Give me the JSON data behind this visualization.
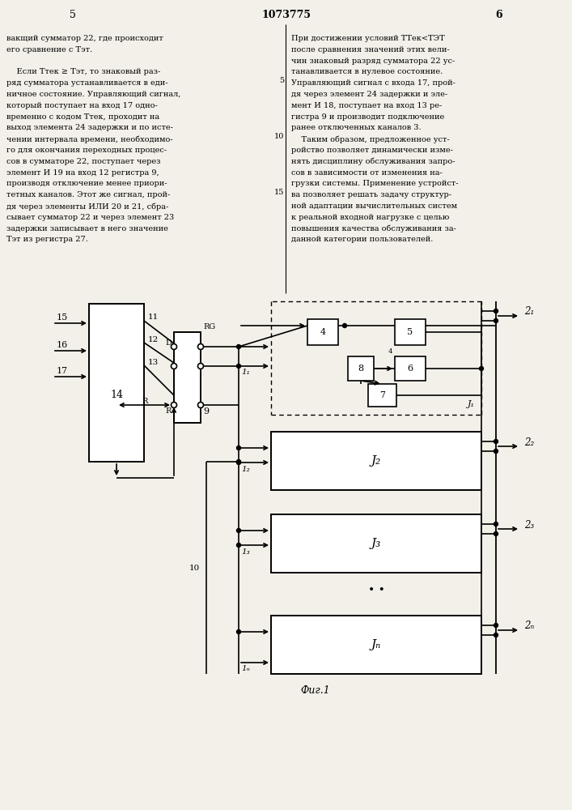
{
  "bg": "#f2f0e8",
  "lc": "#000000",
  "tc": "#000000",
  "header": "1073775",
  "fig_label": "Фиг.1",
  "left_text": [
    "вакщий сумматор 22, где происходит",
    "его сравнение с Tэт.",
    "",
    "    Если Tтек ≥ Tэт, то знаковый раз-",
    "ряд сумматора устанавливается в еди-",
    "ничное состояние. Управляющий сигнал,",
    "который поступает на вход 17 одно-",
    "временно с кодом Tтек, проходит на",
    "выход элемента 24 задержки и по исте-",
    "чении интервала времени, необходимо-",
    "го для окончания переходных процес-",
    "сов в сумматоре 22, поступает через",
    "элемент И 19 на вход 12 регистра 9,",
    "производя отключение менее приори-",
    "тетных каналов. Этот же сигнал, прой-",
    "дя через элементы ИЛИ 20 и 21, сбра-",
    "сывает сумматор 22 и через элемент 23",
    "задержки записывает в него значение",
    "Tэт из регистра 27."
  ],
  "right_text": [
    "При достижении условий TТек<TЭТ",
    "после сравнения значений этих вели-",
    "чин знаковый разряд сумматора 22 ус-",
    "танавливается в нулевое состояние.",
    "Управляющий сигнал с входа 17, прой-",
    "дя через элемент 24 задержки и эле-",
    "мент И 18, поступает на вход 13 ре-",
    "гистра 9 и производит подключение",
    "ранее отключенных каналов 3.",
    "    Таким образом, предложенное уст-",
    "ройство позволяет динамически изме-",
    "нять дисциплину обслуживания запро-",
    "сов в зависимости от изменения на-",
    "грузки системы. Применение устройст-",
    "ва позволяет решать задачу структур-",
    "ной адаптации вычислительных систем",
    "к реальной входной нагрузке с целью",
    "повышения качества обслуживания за-",
    "данной категории пользователей."
  ]
}
